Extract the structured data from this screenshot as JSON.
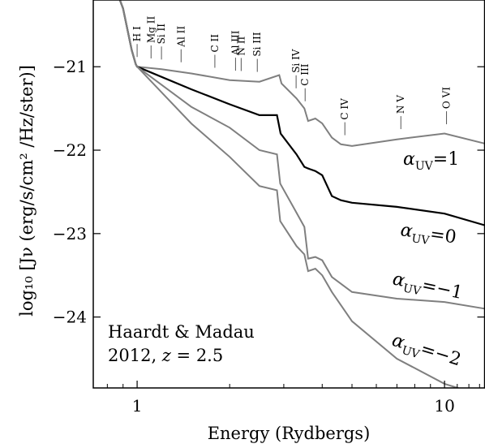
{
  "chart_data": {
    "type": "line",
    "title": "",
    "xlabel": "Energy (Rydbergs)",
    "ylabel": "log₁₀ [Jν (erg/s/cm² /Hz/ster)]",
    "xscale": "log",
    "xlim": [
      0.72,
      13.5
    ],
    "ylim": [
      -24.85,
      -20.2
    ],
    "x_ticks": [
      {
        "value": 1,
        "label": "1"
      },
      {
        "value": 10,
        "label": "10"
      }
    ],
    "y_ticks": [
      {
        "value": -21,
        "label": "−21"
      },
      {
        "value": -22,
        "label": "−22"
      },
      {
        "value": -23,
        "label": "−23"
      },
      {
        "value": -24,
        "label": "−24"
      }
    ],
    "annotation": {
      "line1": "Haardt & Madau",
      "line2": "2012, ",
      "z_symbol": "z",
      "z_value": " = 2.5"
    },
    "ion_markers": [
      {
        "label": "H I",
        "x": 1.0
      },
      {
        "label": "Mg II",
        "x": 1.11
      },
      {
        "label": "Si II",
        "x": 1.2
      },
      {
        "label": "Al II",
        "x": 1.39
      },
      {
        "label": "C II",
        "x": 1.79
      },
      {
        "label": "Al III",
        "x": 2.09
      },
      {
        "label": "N II",
        "x": 2.18
      },
      {
        "label": "Si III",
        "x": 2.46
      },
      {
        "label": "Si IV",
        "x": 3.29
      },
      {
        "label": "C III",
        "x": 3.52
      },
      {
        "label": "C IV",
        "x": 4.74
      },
      {
        "label": "N V",
        "x": 7.21
      },
      {
        "label": "O VI",
        "x": 10.15
      }
    ],
    "series": [
      {
        "label_prefix": "α",
        "label_sub": "UV",
        "label_value": "=1",
        "color": "#7f7f7f",
        "points": [
          [
            0.72,
            -19.5
          ],
          [
            0.8,
            -19.8
          ],
          [
            0.9,
            -20.3
          ],
          [
            0.96,
            -20.8
          ],
          [
            0.99,
            -20.97
          ],
          [
            1.0,
            -21.0
          ],
          [
            1.2,
            -21.03
          ],
          [
            1.5,
            -21.08
          ],
          [
            2.0,
            -21.16
          ],
          [
            2.5,
            -21.18
          ],
          [
            2.9,
            -21.1
          ],
          [
            2.95,
            -21.2
          ],
          [
            3.3,
            -21.38
          ],
          [
            3.5,
            -21.5
          ],
          [
            3.6,
            -21.65
          ],
          [
            3.8,
            -21.62
          ],
          [
            4.0,
            -21.68
          ],
          [
            4.3,
            -21.85
          ],
          [
            4.6,
            -21.93
          ],
          [
            5.0,
            -21.95
          ],
          [
            7.0,
            -21.87
          ],
          [
            10.0,
            -21.8
          ],
          [
            13.5,
            -21.92
          ]
        ]
      },
      {
        "label_prefix": "α",
        "label_sub": "UV",
        "label_value": "=0",
        "color": "#000000",
        "points": [
          [
            0.72,
            -19.5
          ],
          [
            0.8,
            -19.8
          ],
          [
            0.9,
            -20.3
          ],
          [
            0.96,
            -20.8
          ],
          [
            0.99,
            -20.97
          ],
          [
            1.0,
            -21.0
          ],
          [
            1.5,
            -21.27
          ],
          [
            2.0,
            -21.45
          ],
          [
            2.5,
            -21.58
          ],
          [
            2.85,
            -21.58
          ],
          [
            2.93,
            -21.8
          ],
          [
            3.3,
            -22.05
          ],
          [
            3.5,
            -22.2
          ],
          [
            3.6,
            -22.22
          ],
          [
            3.8,
            -22.25
          ],
          [
            4.0,
            -22.3
          ],
          [
            4.3,
            -22.55
          ],
          [
            4.6,
            -22.6
          ],
          [
            5.0,
            -22.63
          ],
          [
            7.0,
            -22.68
          ],
          [
            10.0,
            -22.76
          ],
          [
            13.5,
            -22.9
          ]
        ]
      },
      {
        "label_prefix": "α",
        "label_sub": "UV",
        "label_value": "=−1",
        "color": "#7f7f7f",
        "points": [
          [
            0.72,
            -19.5
          ],
          [
            0.8,
            -19.8
          ],
          [
            0.9,
            -20.3
          ],
          [
            0.96,
            -20.8
          ],
          [
            0.99,
            -20.97
          ],
          [
            1.0,
            -21.0
          ],
          [
            1.5,
            -21.48
          ],
          [
            2.0,
            -21.73
          ],
          [
            2.5,
            -22.0
          ],
          [
            2.85,
            -22.05
          ],
          [
            2.92,
            -22.4
          ],
          [
            3.3,
            -22.75
          ],
          [
            3.5,
            -22.92
          ],
          [
            3.6,
            -23.3
          ],
          [
            3.8,
            -23.28
          ],
          [
            4.0,
            -23.32
          ],
          [
            4.3,
            -23.52
          ],
          [
            5.0,
            -23.7
          ],
          [
            7.0,
            -23.78
          ],
          [
            10.0,
            -23.82
          ],
          [
            13.5,
            -23.9
          ]
        ]
      },
      {
        "label_prefix": "α",
        "label_sub": "UV",
        "label_value": "=−2",
        "color": "#7f7f7f",
        "points": [
          [
            0.72,
            -19.5
          ],
          [
            0.8,
            -19.8
          ],
          [
            0.9,
            -20.3
          ],
          [
            0.96,
            -20.8
          ],
          [
            0.99,
            -20.97
          ],
          [
            1.0,
            -21.0
          ],
          [
            1.5,
            -21.68
          ],
          [
            2.0,
            -22.08
          ],
          [
            2.5,
            -22.43
          ],
          [
            2.85,
            -22.48
          ],
          [
            2.92,
            -22.85
          ],
          [
            3.3,
            -23.15
          ],
          [
            3.5,
            -23.25
          ],
          [
            3.6,
            -23.45
          ],
          [
            3.8,
            -23.42
          ],
          [
            4.0,
            -23.5
          ],
          [
            4.3,
            -23.7
          ],
          [
            5.0,
            -24.05
          ],
          [
            7.0,
            -24.5
          ],
          [
            10.0,
            -24.8
          ],
          [
            13.5,
            -24.95
          ]
        ]
      }
    ]
  }
}
